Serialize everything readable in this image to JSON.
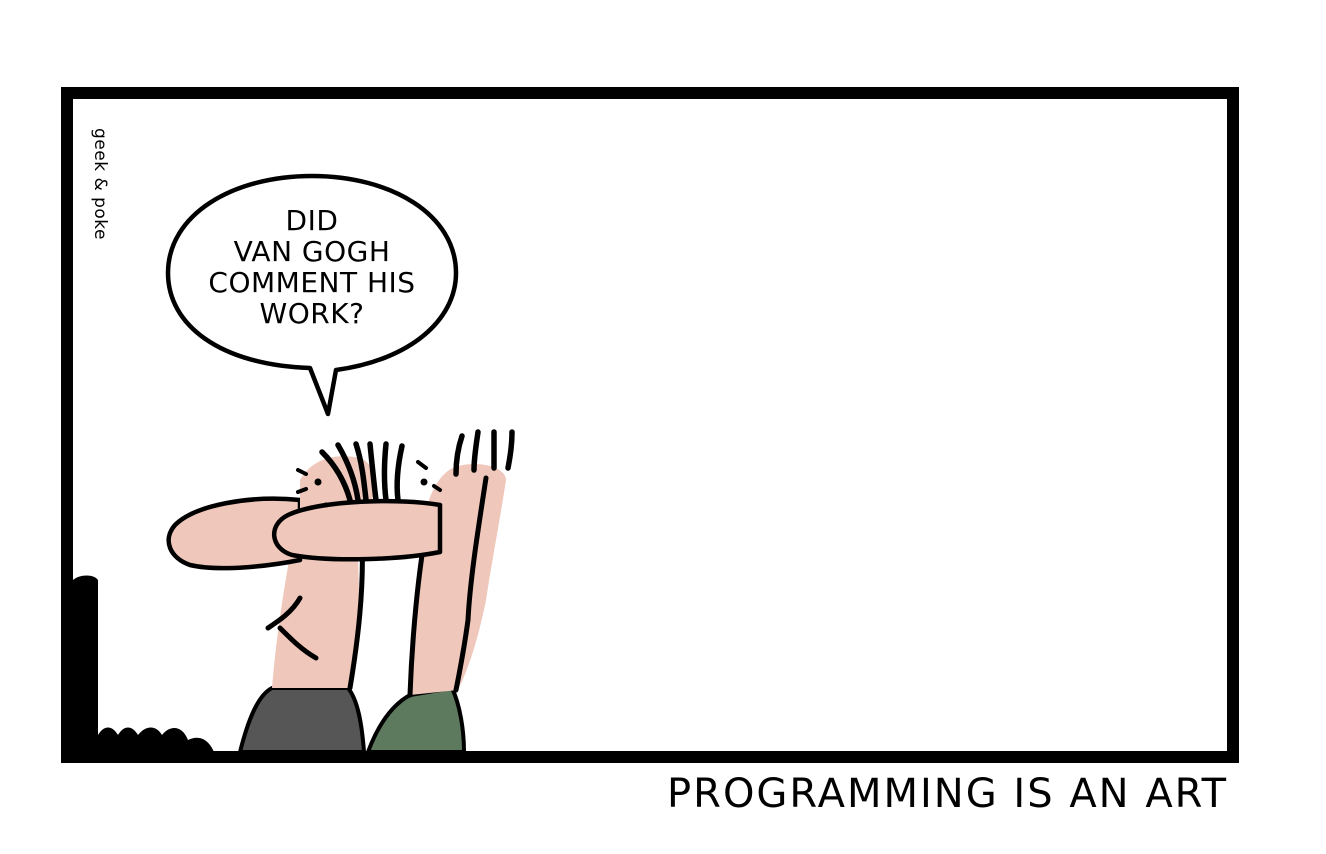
{
  "comic": {
    "signature": "geek & poke",
    "speech_bubble_lines": [
      "DID",
      "VAN GOGH",
      "COMMENT HIS",
      "WORK?"
    ],
    "caption": "PROGRAMMING IS AN ART"
  },
  "colors": {
    "skin": "#efc7bb",
    "shirt_left": "#565656",
    "shirt_right": "#5d7a5f",
    "ink": "#000000",
    "background": "#ffffff"
  }
}
